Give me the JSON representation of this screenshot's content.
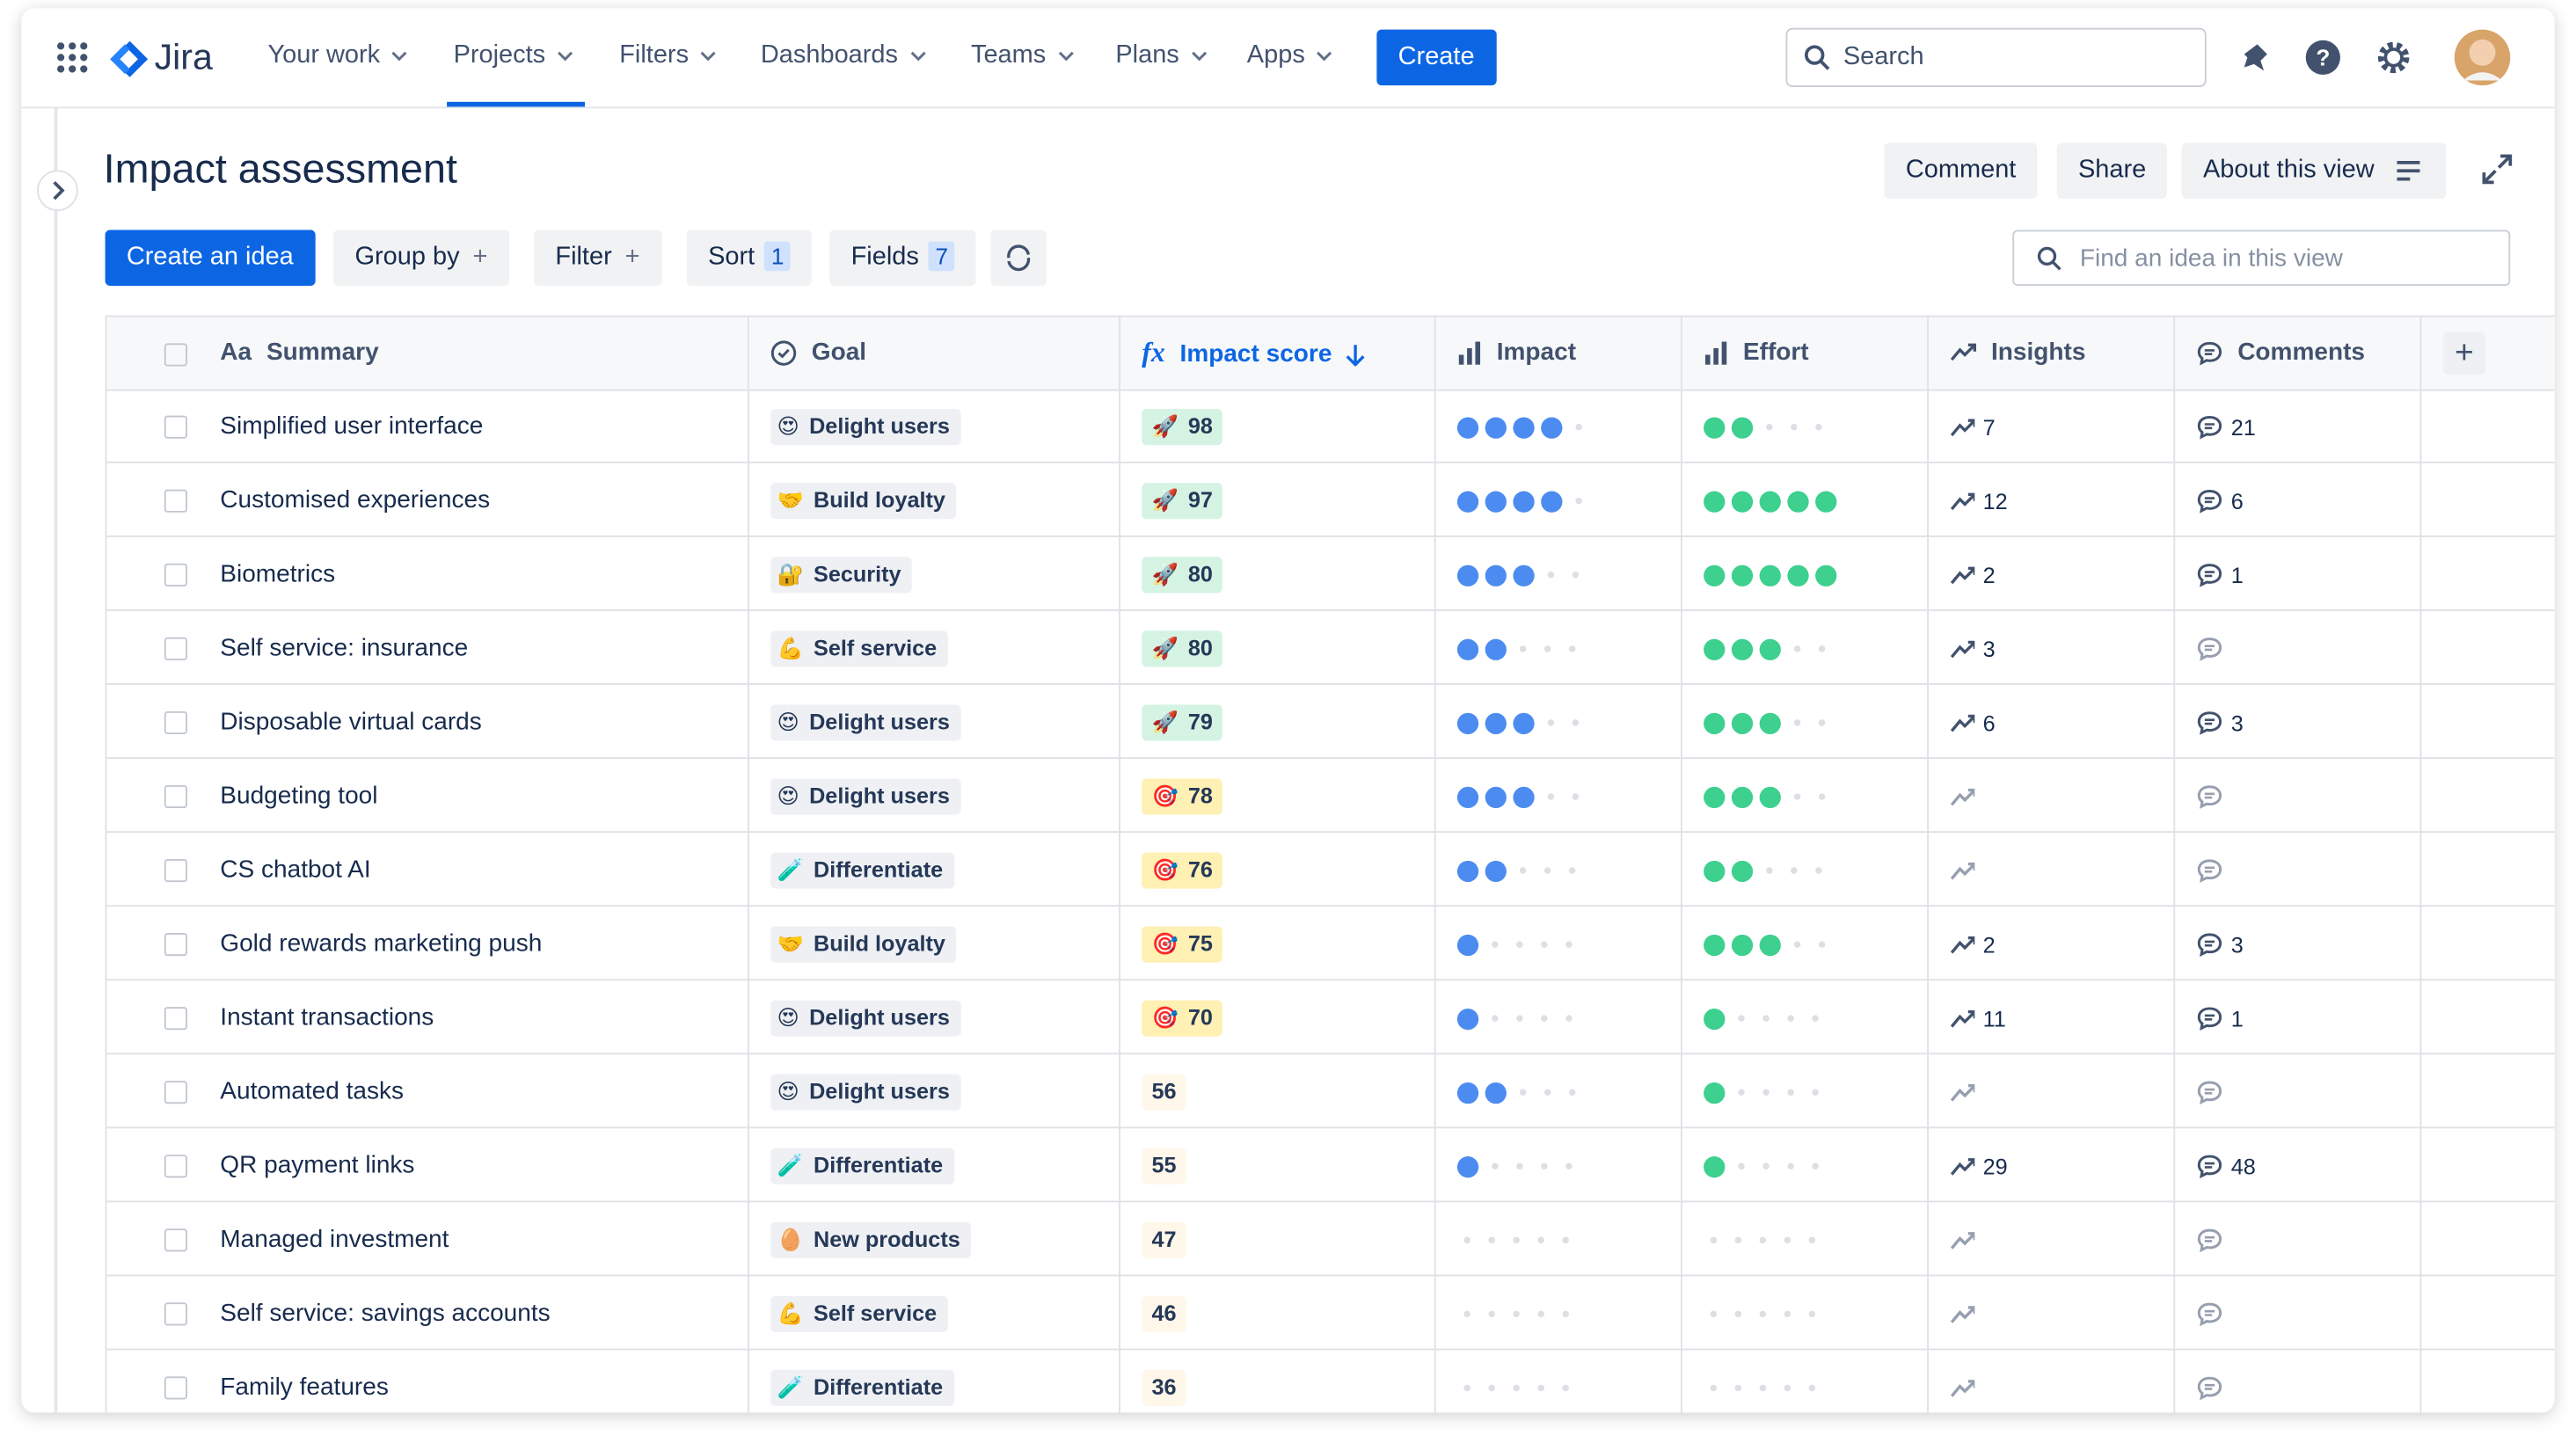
{
  "nav": {
    "product": "Jira",
    "menu": [
      "Your work",
      "Projects",
      "Filters",
      "Dashboards",
      "Teams",
      "Plans",
      "Apps"
    ],
    "create": "Create",
    "search": "Search"
  },
  "header": {
    "title": "Impact assessment",
    "buttons": [
      "Comment",
      "Share",
      "About this view"
    ]
  },
  "toolbar": {
    "create_idea": "Create an idea",
    "group_by": "Group by",
    "filter": "Filter",
    "sort": "Sort",
    "sort_count": 1,
    "fields": "Fields",
    "fields_count": 7,
    "search_placeholder": "Find an idea in this view"
  },
  "table": {
    "columns": {
      "summary_icon": "Aa",
      "summary": "Summary",
      "goal": "Goal",
      "score_icon": "fx",
      "score": "Impact score",
      "impact": "Impact",
      "effort": "Effort",
      "insights": "Insights",
      "comments": "Comments"
    },
    "rating_max": 5,
    "impact_color": "#4c8cf0",
    "effort_color": "#3dd08f",
    "rows": [
      {
        "summary": "Simplified user interface",
        "goal_icon": "😍",
        "goal": "Delight users",
        "score_icon": "🚀",
        "score": 98,
        "score_color": "#d4f3e3",
        "impact": 4,
        "effort": 2,
        "insights": 7,
        "comments": 21
      },
      {
        "summary": "Customised experiences",
        "goal_icon": "🤝",
        "goal": "Build loyalty",
        "score_icon": "🚀",
        "score": 97,
        "score_color": "#d4f3e3",
        "impact": 4,
        "effort": 5,
        "insights": 12,
        "comments": 6
      },
      {
        "summary": "Biometrics",
        "goal_icon": "🔐",
        "goal": "Security",
        "score_icon": "🚀",
        "score": 80,
        "score_color": "#d4f3e3",
        "impact": 3,
        "effort": 5,
        "insights": 2,
        "comments": 1
      },
      {
        "summary": "Self service: insurance",
        "goal_icon": "💪",
        "goal": "Self service",
        "score_icon": "🚀",
        "score": 80,
        "score_color": "#d4f3e3",
        "impact": 2,
        "effort": 3,
        "insights": 3,
        "comments": null
      },
      {
        "summary": "Disposable virtual cards",
        "goal_icon": "😍",
        "goal": "Delight users",
        "score_icon": "🚀",
        "score": 79,
        "score_color": "#d4f3e3",
        "impact": 3,
        "effort": 3,
        "insights": 6,
        "comments": 3
      },
      {
        "summary": "Budgeting tool",
        "goal_icon": "😍",
        "goal": "Delight users",
        "score_icon": "🎯",
        "score": 78,
        "score_color": "#fff0b3",
        "impact": 3,
        "effort": 3,
        "insights": null,
        "comments": null
      },
      {
        "summary": "CS chatbot AI",
        "goal_icon": "🧪",
        "goal": "Differentiate",
        "score_icon": "🎯",
        "score": 76,
        "score_color": "#fff0b3",
        "impact": 2,
        "effort": 2,
        "insights": null,
        "comments": null
      },
      {
        "summary": "Gold rewards marketing push",
        "goal_icon": "🤝",
        "goal": "Build loyalty",
        "score_icon": "🎯",
        "score": 75,
        "score_color": "#fff0b3",
        "impact": 1,
        "effort": 3,
        "insights": 2,
        "comments": 3
      },
      {
        "summary": "Instant transactions",
        "goal_icon": "😍",
        "goal": "Delight users",
        "score_icon": "🎯",
        "score": 70,
        "score_color": "#fff0b3",
        "impact": 1,
        "effort": 1,
        "insights": 11,
        "comments": 1
      },
      {
        "summary": "Automated tasks",
        "goal_icon": "😍",
        "goal": "Delight users",
        "score": 56,
        "score_color": "#fff7ea",
        "impact": 2,
        "effort": 1,
        "insights": null,
        "comments": null
      },
      {
        "summary": "QR payment links",
        "goal_icon": "🧪",
        "goal": "Differentiate",
        "score": 55,
        "score_color": "#fff7ea",
        "impact": 1,
        "effort": 1,
        "insights": 29,
        "comments": 48
      },
      {
        "summary": "Managed investment",
        "goal_icon": "🥚",
        "goal": "New products",
        "score": 47,
        "score_color": "#fff7ea",
        "impact": 0,
        "effort": 0,
        "insights": null,
        "comments": null
      },
      {
        "summary": "Self service: savings accounts",
        "goal_icon": "💪",
        "goal": "Self service",
        "score": 46,
        "score_color": "#fff7ea",
        "impact": 0,
        "effort": 0,
        "insights": null,
        "comments": null
      },
      {
        "summary": "Family features",
        "goal_icon": "🧪",
        "goal": "Differentiate",
        "score": 36,
        "score_color": "#fff7ea",
        "impact": 0,
        "effort": 0,
        "insights": null,
        "comments": null
      }
    ]
  }
}
